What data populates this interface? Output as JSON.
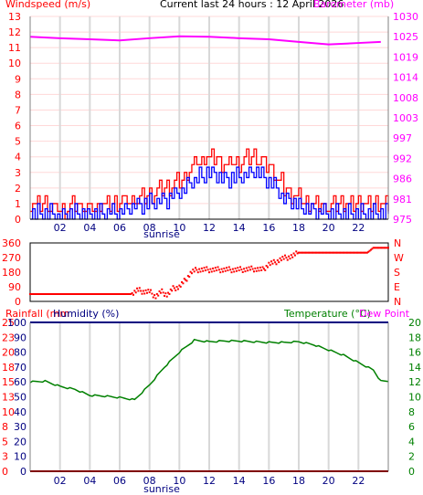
{
  "header": {
    "left_label": "Windspeed (m/s)",
    "center_label": "Current last 24 hours : 12 April 2026",
    "right_label": "Barometer (mb)"
  },
  "colors": {
    "windspeed_axis": "#ff0000",
    "barometer_axis": "#ff00ff",
    "gust_series": "#ff0000",
    "avg_wind_series": "#0000ff",
    "barometer_series": "#ff00ff",
    "direction_series": "#ff0000",
    "temperature": "#008000",
    "humidity": "#000080",
    "rainfall": "#ff0000",
    "dewpoint": "#ff00ff",
    "grid_vertical": "#d8d8d8",
    "grid_horizontal": "#ffd8d8"
  },
  "chart_data": [
    {
      "type": "line",
      "title": "Current last 24 hours : 12 April 2026",
      "xlabel": "sunrise",
      "x_ticks": [
        "02",
        "04",
        "06",
        "08",
        "10",
        "12",
        "14",
        "16",
        "18",
        "20",
        "22"
      ],
      "left_axis": {
        "label": "Windspeed (m/s)",
        "ticks": [
          "0",
          "1",
          "2",
          "3",
          "4",
          "5",
          "6",
          "7",
          "8",
          "9",
          "10",
          "11",
          "12",
          "13"
        ],
        "ylim": [
          0,
          13
        ]
      },
      "right_axis": {
        "label": "Barometer (mb)",
        "ticks": [
          "975",
          "981",
          "986",
          "992",
          "997",
          "1003",
          "1008",
          "1014",
          "1019",
          "1025",
          "1030"
        ],
        "ylim": [
          975.5,
          1030.5
        ]
      },
      "x_range": [
        0,
        24
      ],
      "series": [
        {
          "name": "Barometer",
          "axis": "right",
          "points": [
            [
              0,
              1025.0
            ],
            [
              2,
              1024.6
            ],
            [
              4,
              1024.3
            ],
            [
              6,
              1024.0
            ],
            [
              8,
              1024.6
            ],
            [
              10,
              1025.1
            ],
            [
              12,
              1025.0
            ],
            [
              14,
              1024.6
            ],
            [
              16,
              1024.3
            ],
            [
              18,
              1023.6
            ],
            [
              20,
              1022.9
            ],
            [
              22,
              1023.3
            ],
            [
              23.5,
              1023.6
            ]
          ]
        },
        {
          "name": "Wind gust",
          "axis": "left",
          "points": [
            [
              0,
              1
            ],
            [
              1,
              1
            ],
            [
              2,
              0.5
            ],
            [
              3,
              1
            ],
            [
              4,
              0.5
            ],
            [
              5,
              1
            ],
            [
              6,
              1
            ],
            [
              7,
              1.2
            ],
            [
              8,
              1.5
            ],
            [
              9,
              2
            ],
            [
              10,
              2.5
            ],
            [
              11,
              3.5
            ],
            [
              12,
              4
            ],
            [
              13,
              3.5
            ],
            [
              14,
              3.6
            ],
            [
              15,
              4.2
            ],
            [
              16,
              3.2
            ],
            [
              17,
              2
            ],
            [
              18,
              1.2
            ],
            [
              19,
              1
            ],
            [
              20,
              0.8
            ],
            [
              21,
              1
            ],
            [
              22,
              1
            ],
            [
              23,
              1
            ],
            [
              23.5,
              1
            ]
          ]
        },
        {
          "name": "Wind average",
          "axis": "left",
          "points": [
            [
              0,
              0.3
            ],
            [
              1,
              0.4
            ],
            [
              2,
              0.2
            ],
            [
              3,
              0.4
            ],
            [
              4,
              0.2
            ],
            [
              5,
              0.4
            ],
            [
              6,
              0.5
            ],
            [
              7,
              0.8
            ],
            [
              8,
              1
            ],
            [
              9,
              1.2
            ],
            [
              10,
              1.7
            ],
            [
              11,
              2.5
            ],
            [
              12,
              3
            ],
            [
              13,
              2.5
            ],
            [
              14,
              2.7
            ],
            [
              15,
              3.1
            ],
            [
              16,
              2.4
            ],
            [
              17,
              1.4
            ],
            [
              18,
              0.9
            ],
            [
              19,
              0.5
            ],
            [
              20,
              0.4
            ],
            [
              21,
              0.4
            ],
            [
              22,
              0.4
            ],
            [
              23,
              0.4
            ],
            [
              23.5,
              0.4
            ]
          ]
        }
      ]
    },
    {
      "type": "scatter",
      "title": "",
      "x_range": [
        0,
        24
      ],
      "left_axis": {
        "label": "",
        "ticks": [
          "0",
          "90",
          "180",
          "270",
          "360"
        ],
        "ylim": [
          0,
          360
        ]
      },
      "right_axis": {
        "label": "",
        "ticks": [
          "N",
          "E",
          "S",
          "W",
          "N"
        ]
      },
      "series": [
        {
          "name": "Wind direction",
          "points": [
            [
              0,
              45
            ],
            [
              3,
              45
            ],
            [
              6,
              45
            ],
            [
              6.8,
              45
            ],
            [
              7.2,
              70
            ],
            [
              7.6,
              60
            ],
            [
              8,
              60
            ],
            [
              8.4,
              30
            ],
            [
              8.8,
              60
            ],
            [
              9.2,
              40
            ],
            [
              9.6,
              80
            ],
            [
              10,
              90
            ],
            [
              10.4,
              130
            ],
            [
              10.8,
              180
            ],
            [
              11.2,
              195
            ],
            [
              12,
              195
            ],
            [
              13,
              195
            ],
            [
              14,
              195
            ],
            [
              15,
              200
            ],
            [
              15.6,
              195
            ],
            [
              16,
              230
            ],
            [
              16.4,
              240
            ],
            [
              16.8,
              260
            ],
            [
              17.2,
              270
            ],
            [
              17.6,
              280
            ],
            [
              18,
              300
            ],
            [
              18.5,
              300
            ],
            [
              19,
              300
            ],
            [
              20,
              300
            ],
            [
              21,
              300
            ],
            [
              22,
              300
            ],
            [
              22.6,
              300
            ],
            [
              23,
              330
            ],
            [
              23.5,
              330
            ]
          ]
        }
      ]
    },
    {
      "type": "line",
      "title": "",
      "xlabel": "sunrise",
      "x_ticks": [
        "02",
        "04",
        "06",
        "08",
        "10",
        "12",
        "14",
        "16",
        "18",
        "20",
        "22"
      ],
      "labels": {
        "rainfall": "Rainfall (mm",
        "humidity": "Humidity (%)",
        "temperature": "Temperature (°C)",
        "dewpoint": "Dew Point"
      },
      "left_axis": {
        "label": "Rainfall (mm",
        "ticks": [
          "0",
          "3",
          "5",
          "8",
          "10",
          "13",
          "15",
          "18",
          "20",
          "23",
          "25"
        ],
        "ylim": [
          0,
          25
        ]
      },
      "humidity_axis": {
        "label": "Humidity (%)",
        "ticks": [
          "0",
          "10",
          "20",
          "30",
          "40",
          "50",
          "60",
          "70",
          "80",
          "90",
          "100"
        ],
        "ylim": [
          0,
          100
        ]
      },
      "right_axis": {
        "label": "Temperature (°C)",
        "ticks": [
          "0",
          "2",
          "4",
          "6",
          "8",
          "10",
          "12",
          "14",
          "16",
          "18",
          "20"
        ],
        "ylim": [
          0,
          20
        ]
      },
      "x_range": [
        0,
        24
      ],
      "series": [
        {
          "name": "Temperature",
          "axis": "right",
          "points": [
            [
              0,
              12
            ],
            [
              1,
              12.1
            ],
            [
              2,
              11.4
            ],
            [
              3,
              11
            ],
            [
              4,
              10.2
            ],
            [
              5,
              10.1
            ],
            [
              6,
              9.9
            ],
            [
              7,
              9.6
            ],
            [
              8,
              11.6
            ],
            [
              9,
              14
            ],
            [
              10,
              16
            ],
            [
              11,
              17.6
            ],
            [
              12,
              17.4
            ],
            [
              13,
              17.5
            ],
            [
              14,
              17.5
            ],
            [
              15,
              17.4
            ],
            [
              16,
              17.3
            ],
            [
              17,
              17.3
            ],
            [
              18,
              17.4
            ],
            [
              19,
              17
            ],
            [
              20,
              16.3
            ],
            [
              21,
              15.6
            ],
            [
              22,
              14.6
            ],
            [
              23,
              13.6
            ],
            [
              23.5,
              12.1
            ]
          ]
        },
        {
          "name": "Humidity",
          "axis": "humidity",
          "points": [
            [
              0,
              100
            ],
            [
              24,
              100
            ]
          ]
        },
        {
          "name": "Rainfall",
          "axis": "left",
          "points": [
            [
              0,
              0
            ],
            [
              24,
              0
            ]
          ]
        }
      ]
    }
  ]
}
